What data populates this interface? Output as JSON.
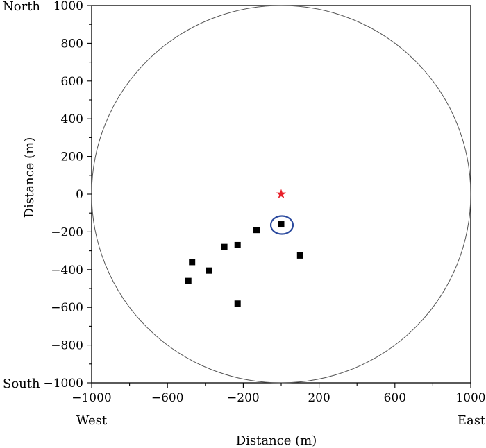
{
  "chart_data": {
    "type": "scatter",
    "title": "",
    "xlabel": "Distance (m)",
    "ylabel": "Distance (m)",
    "xlim": [
      -1000,
      1000
    ],
    "ylim": [
      -1000,
      1000
    ],
    "x_ticks": [
      -1000,
      -600,
      -200,
      200,
      600,
      1000
    ],
    "x_tick_labels": [
      "−1000",
      "−600",
      "−200",
      "200",
      "600",
      "1000"
    ],
    "y_ticks": [
      1000,
      800,
      600,
      400,
      200,
      0,
      -200,
      -400,
      -600,
      -800,
      -1000
    ],
    "y_tick_labels": [
      "1000",
      "800",
      "600",
      "400",
      "200",
      "0",
      "−200",
      "−400",
      "−600",
      "−800",
      "−1000"
    ],
    "direction_labels": {
      "north": "North",
      "south": "South",
      "west": "West",
      "east": "East"
    },
    "grid": false,
    "circle": {
      "center": [
        0,
        0
      ],
      "radius": 1000,
      "color": "#555555"
    },
    "star": {
      "x": 0,
      "y": 0,
      "color": "#e8202a"
    },
    "points": [
      {
        "x": 0,
        "y": -160
      },
      {
        "x": -130,
        "y": -190
      },
      {
        "x": -230,
        "y": -270
      },
      {
        "x": -300,
        "y": -280
      },
      {
        "x": -470,
        "y": -360
      },
      {
        "x": -380,
        "y": -405
      },
      {
        "x": -490,
        "y": -460
      },
      {
        "x": -230,
        "y": -580
      },
      {
        "x": 100,
        "y": -325
      }
    ],
    "point_color": "#000000",
    "highlight": {
      "x": 0,
      "y": -160,
      "color": "#2b4a9e"
    }
  }
}
